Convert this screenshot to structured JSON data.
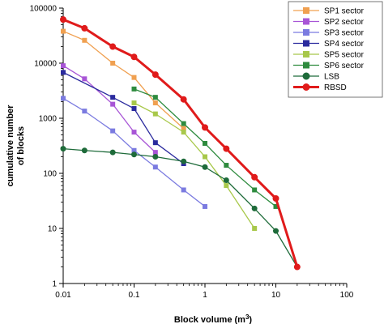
{
  "chart_data": {
    "type": "line",
    "xscale": "log",
    "yscale": "log",
    "xlim": [
      0.01,
      100
    ],
    "ylim": [
      1,
      100000
    ],
    "xlabel": "Block volume (m3)",
    "xlabel_main": "Block volume (m",
    "xlabel_sup": "3",
    "xlabel_close": ")",
    "ylabel_line1": "cumulative number",
    "ylabel_line2": "of blocks",
    "x_ticks": [
      "0.01",
      "0.1",
      "1",
      "10",
      "100"
    ],
    "y_ticks": [
      "1",
      "10",
      "100",
      "1000",
      "10000",
      "100000"
    ],
    "legend_position": "top-right",
    "grid": false,
    "series": [
      {
        "name": "SP1 sector",
        "color": "#F0A050",
        "marker": "square",
        "width": 1.3,
        "x": [
          0.01,
          0.02,
          0.05,
          0.1,
          0.2,
          0.5
        ],
        "y": [
          38000,
          26000,
          10000,
          5500,
          1900,
          650
        ]
      },
      {
        "name": "SP2 sector",
        "color": "#A855D6",
        "marker": "square",
        "width": 1.3,
        "x": [
          0.01,
          0.02,
          0.05,
          0.1,
          0.2
        ],
        "y": [
          9000,
          5200,
          1800,
          560,
          240
        ]
      },
      {
        "name": "SP3 sector",
        "color": "#7B7BE0",
        "marker": "square",
        "width": 1.3,
        "x": [
          0.01,
          0.02,
          0.05,
          0.1,
          0.2,
          0.5,
          1
        ],
        "y": [
          2300,
          1350,
          590,
          260,
          130,
          50,
          25
        ]
      },
      {
        "name": "SP4 sector",
        "color": "#2B2B9E",
        "marker": "square",
        "width": 1.3,
        "x": [
          0.01,
          0.05,
          0.1,
          0.2,
          0.5
        ],
        "y": [
          6800,
          2400,
          1500,
          360,
          150
        ]
      },
      {
        "name": "SP5 sector",
        "color": "#A8C84A",
        "marker": "square",
        "width": 1.3,
        "x": [
          0.1,
          0.2,
          0.5,
          1,
          2,
          5
        ],
        "y": [
          1900,
          1200,
          560,
          200,
          60,
          10
        ]
      },
      {
        "name": "SP6 sector",
        "color": "#2E8B3E",
        "marker": "square",
        "width": 1.3,
        "x": [
          0.1,
          0.2,
          0.5,
          1,
          2,
          5,
          10
        ],
        "y": [
          3400,
          2400,
          800,
          350,
          140,
          50,
          25
        ]
      },
      {
        "name": "LSB",
        "color": "#1E6B3A",
        "marker": "circle",
        "width": 1.3,
        "x": [
          0.01,
          0.02,
          0.05,
          0.1,
          0.2,
          0.5,
          1,
          2,
          5,
          10,
          20
        ],
        "y": [
          280,
          260,
          240,
          220,
          200,
          165,
          130,
          75,
          23,
          9,
          2
        ]
      },
      {
        "name": "RBSD",
        "color": "#E01B1B",
        "marker": "circle",
        "width": 3,
        "x": [
          0.01,
          0.02,
          0.05,
          0.1,
          0.2,
          0.5,
          1,
          2,
          5,
          10,
          20
        ],
        "y": [
          62000,
          43000,
          20000,
          13000,
          6200,
          2200,
          680,
          280,
          85,
          35,
          2
        ]
      }
    ]
  }
}
